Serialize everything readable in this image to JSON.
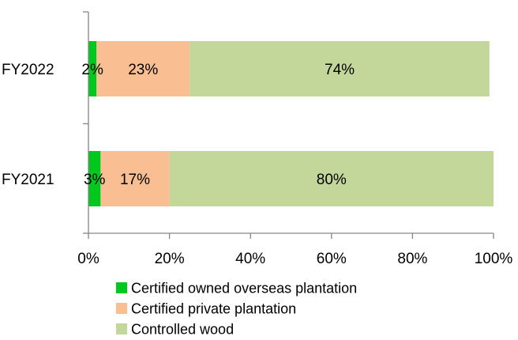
{
  "chart_data": {
    "type": "bar",
    "orientation": "horizontal",
    "stacked": "percent",
    "categories": [
      "FY2022",
      "FY2021"
    ],
    "series": [
      {
        "name": "Certified owned overseas plantation",
        "values": [
          2,
          3
        ],
        "labels": [
          "2%",
          "3%"
        ],
        "color": "#00c81e"
      },
      {
        "name": "Certified private plantation",
        "values": [
          23,
          17
        ],
        "labels": [
          "23%",
          "17%"
        ],
        "color": "#f9be92"
      },
      {
        "name": "Controlled wood",
        "values": [
          74,
          80
        ],
        "labels": [
          "74%",
          "80%"
        ],
        "color": "#c4d79b"
      }
    ],
    "xlim": [
      0,
      100
    ],
    "xticks": [
      "0%",
      "20%",
      "40%",
      "60%",
      "80%",
      "100%"
    ],
    "grid": false,
    "legend_position": "bottom"
  }
}
